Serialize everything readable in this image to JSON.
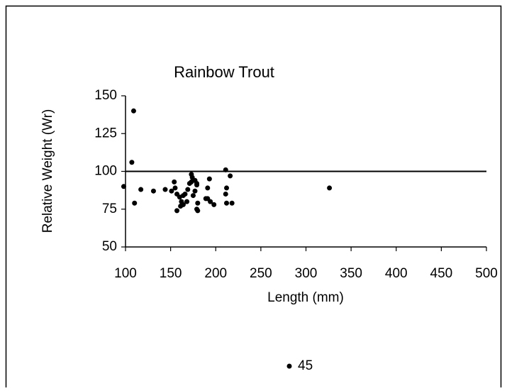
{
  "chart_data": {
    "type": "scatter",
    "title": "Rainbow Trout",
    "x_label": "Length (mm)",
    "y_label": "Relative Weight (Wr)",
    "xlim": [
      100,
      500
    ],
    "xticks": [
      100,
      150,
      200,
      250,
      300,
      350,
      400,
      450,
      500
    ],
    "ylim": [
      50,
      150
    ],
    "yticks": [
      50,
      75,
      100,
      125,
      150
    ],
    "reference_line": 100,
    "grid": false,
    "legend": "bottom",
    "series": [
      {
        "name": "45",
        "color": "#000000",
        "x": [
          109,
          107,
          98,
          110,
          117,
          131,
          144,
          151,
          155,
          154,
          211,
          157,
          160,
          162,
          157,
          161,
          164,
          166,
          164,
          168,
          169,
          171,
          173,
          173,
          174,
          175,
          177,
          179,
          179,
          177,
          180,
          179,
          180,
          189,
          191,
          194,
          191,
          193,
          198,
          211,
          212,
          212,
          216,
          218,
          326
        ],
        "y": [
          140,
          106,
          90,
          79,
          88,
          87,
          88,
          87,
          89,
          93,
          101,
          85,
          83,
          80,
          74,
          77,
          78,
          85,
          84,
          80,
          88,
          92,
          93,
          98,
          96,
          84,
          94,
          92,
          91,
          87,
          79,
          75,
          74,
          82,
          82,
          80,
          89,
          95,
          78,
          85,
          89,
          79,
          97,
          79,
          89
        ]
      }
    ]
  }
}
